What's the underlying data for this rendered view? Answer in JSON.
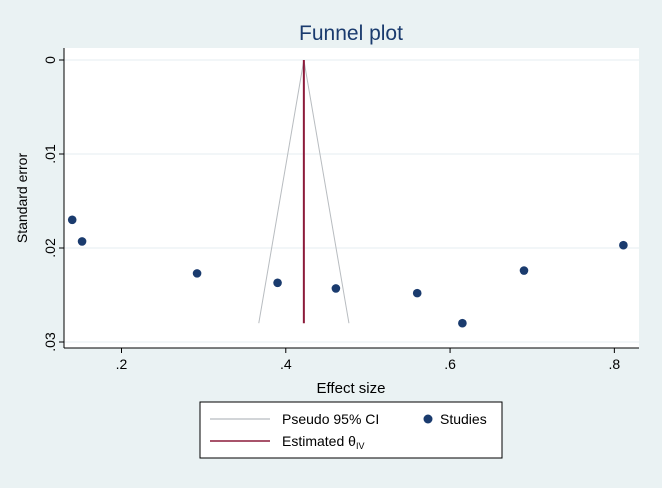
{
  "chart_data": {
    "type": "scatter",
    "title": "Funnel plot",
    "xlabel": "Effect size",
    "ylabel": "Standard error",
    "xlim": [
      0.13,
      0.83
    ],
    "ylim": [
      0.0,
      0.03
    ],
    "y_reversed": true,
    "x_ticks": [
      0.2,
      0.4,
      0.6,
      0.8
    ],
    "x_tick_labels": [
      ".2",
      ".4",
      ".6",
      ".8"
    ],
    "y_ticks": [
      0,
      0.01,
      0.02,
      0.03
    ],
    "y_tick_labels": [
      "0",
      ".01",
      ".02",
      ".03"
    ],
    "grid": true,
    "estimate": 0.422,
    "funnel_max_se": 0.028,
    "series": [
      {
        "name": "Studies",
        "color": "#1a3b6e",
        "points": [
          {
            "x": 0.14,
            "y": 0.017
          },
          {
            "x": 0.152,
            "y": 0.0193
          },
          {
            "x": 0.292,
            "y": 0.0227
          },
          {
            "x": 0.39,
            "y": 0.0237
          },
          {
            "x": 0.461,
            "y": 0.0243
          },
          {
            "x": 0.56,
            "y": 0.0248
          },
          {
            "x": 0.615,
            "y": 0.028
          },
          {
            "x": 0.69,
            "y": 0.0224
          },
          {
            "x": 0.811,
            "y": 0.0197
          }
        ]
      }
    ],
    "legend": {
      "placement": "bottom",
      "items": [
        {
          "label": "Pseudo 95% CI",
          "symbol": "line",
          "color": "#b8bcc0"
        },
        {
          "label": "Studies",
          "symbol": "dot",
          "color": "#1a3b6e"
        },
        {
          "label": "Estimated θ",
          "subscript": "IV",
          "symbol": "line",
          "color": "#8b1a3a"
        }
      ]
    },
    "colors": {
      "title": "#1a3b6e",
      "plot_background": "#ffffff",
      "outer_background": "#eaf2f3",
      "grid": "#e6eef0",
      "ci_lines": "#b8bcc0",
      "estimate_line": "#8b1a3a",
      "points": "#1a3b6e"
    }
  }
}
